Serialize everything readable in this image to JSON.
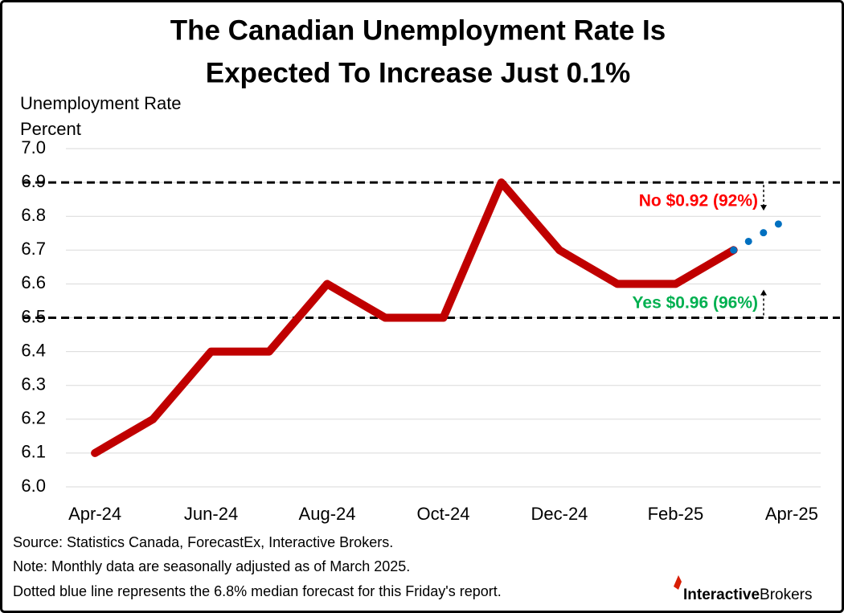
{
  "chart_data": {
    "type": "line",
    "title": [
      "The Canadian Unemployment Rate Is",
      "Expected To Increase Just 0.1%"
    ],
    "y_axis_label": [
      "Unemployment Rate",
      "Percent"
    ],
    "categories": [
      "Apr-24",
      null,
      "Jun-24",
      null,
      "Aug-24",
      null,
      "Oct-24",
      null,
      "Dec-24",
      null,
      "Feb-25",
      null,
      "Apr-25"
    ],
    "series": [
      {
        "color": "#c00000",
        "style": "solid",
        "values": [
          6.1,
          6.2,
          6.4,
          6.4,
          6.6,
          6.5,
          6.5,
          6.9,
          6.7,
          6.6,
          6.6,
          6.7,
          null
        ]
      },
      {
        "color": "#0070c0",
        "style": "dotted",
        "values": [
          null,
          null,
          null,
          null,
          null,
          null,
          null,
          null,
          null,
          null,
          null,
          6.7,
          6.8
        ]
      }
    ],
    "ylim": [
      6.0,
      7.0
    ],
    "yticks": [
      {
        "value": 6.0,
        "label": "6.0"
      },
      {
        "value": 6.1,
        "label": "6.1"
      },
      {
        "value": 6.2,
        "label": "6.2"
      },
      {
        "value": 6.3,
        "label": "6.3"
      },
      {
        "value": 6.4,
        "label": "6.4"
      },
      {
        "value": 6.5,
        "label": "6.5"
      },
      {
        "value": 6.6,
        "label": "6.6"
      },
      {
        "value": 6.7,
        "label": "6.7"
      },
      {
        "value": 6.8,
        "label": "6.8"
      },
      {
        "value": 6.9,
        "label": "6.9"
      },
      {
        "value": 7.0,
        "label": "7.0"
      }
    ],
    "grid": true,
    "reference_lines": [
      6.9,
      6.5
    ],
    "annotations": [
      {
        "text": "No $0.92 (92%)",
        "color": "#ff0000"
      },
      {
        "text": "Yes $0.96 (96%)",
        "color": "#00b050"
      }
    ],
    "notes": [
      "Source: Statistics Canada, ForecastEx, Interactive Brokers.",
      "Note: Monthly data are seasonally adjusted as of March 2025.",
      "Dotted blue line represents the 6.8% median forecast for this Friday's report."
    ],
    "logo": [
      "Interactive",
      "Brokers"
    ]
  }
}
